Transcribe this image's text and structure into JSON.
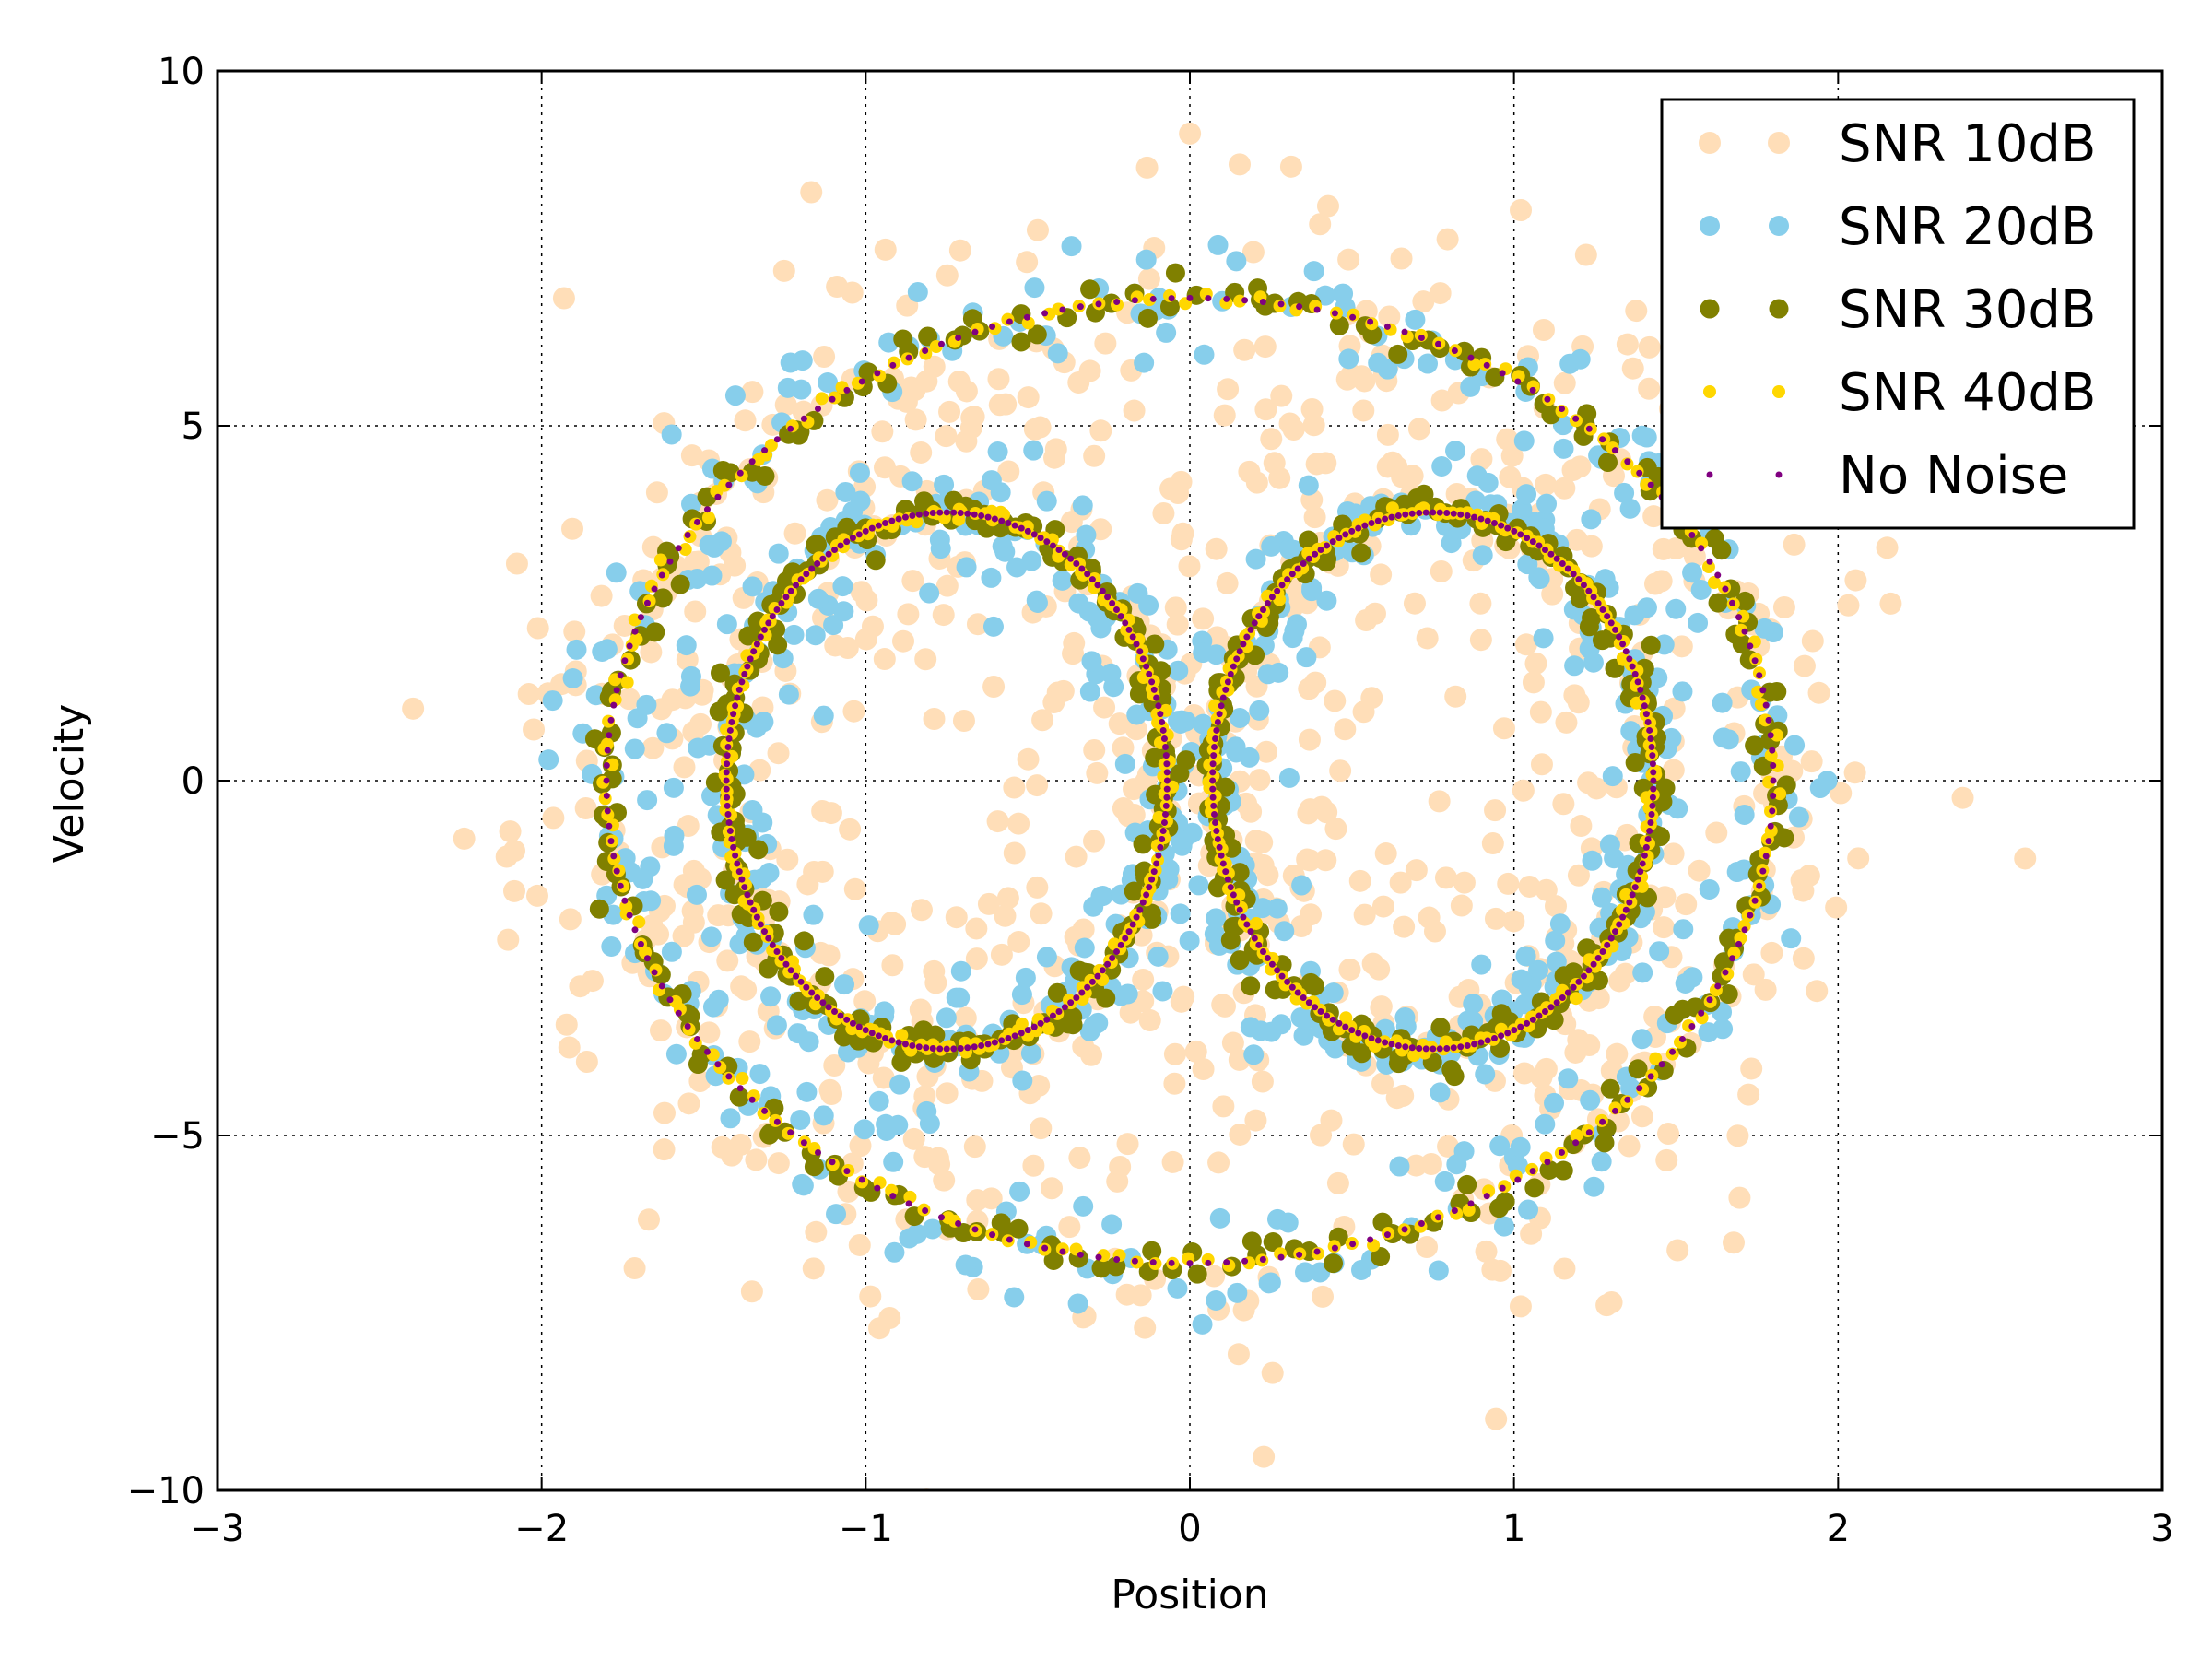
{
  "chart_data": {
    "type": "scatter",
    "title": "",
    "xlabel": "Position",
    "ylabel": "Velocity",
    "xlim": [
      -3,
      3
    ],
    "ylim": [
      -10,
      10
    ],
    "xticks": [
      -3,
      -2,
      -1,
      0,
      1,
      2,
      3
    ],
    "yticks": [
      -10,
      -5,
      0,
      5,
      10
    ],
    "xtick_labels": [
      "−3",
      "−2",
      "−1",
      "0",
      "1",
      "2",
      "3"
    ],
    "ytick_labels": [
      "−10",
      "−5",
      "0",
      "5",
      "10"
    ],
    "grid": true,
    "legend_location": "top-right",
    "trajectory": {
      "description": "Double-scroll phase portrait: outer ring radius 1.8 (x) by 6.8 (y), two inner lobes",
      "outer": {
        "cx": 0.0,
        "rx": 1.8,
        "ry": 6.8
      },
      "left_lobe": {
        "cx": -0.75,
        "rx": 0.68,
        "ry": 4.2
      },
      "right_lobe": {
        "cx": 0.75,
        "rx": 0.68,
        "ry": 4.2
      }
    },
    "series": [
      {
        "name": "SNR 10dB",
        "color": "#FFDEB8",
        "marker_size": 12,
        "noise_x": 0.28,
        "noise_y": 1.5,
        "samples": 900
      },
      {
        "name": "SNR 20dB",
        "color": "#87CEEB",
        "marker_size": 11,
        "noise_x": 0.09,
        "noise_y": 0.48,
        "samples": 700
      },
      {
        "name": "SNR 30dB",
        "color": "#808000",
        "marker_size": 10.5,
        "noise_x": 0.028,
        "noise_y": 0.15,
        "samples": 620
      },
      {
        "name": "SNR 40dB",
        "color": "#FFD700",
        "marker_size": 7,
        "noise_x": 0.009,
        "noise_y": 0.05,
        "samples": 600
      },
      {
        "name": "No Noise",
        "color": "#800080",
        "marker_size": 3.5,
        "noise_x": 0.0,
        "noise_y": 0.0,
        "samples": 600
      }
    ]
  }
}
